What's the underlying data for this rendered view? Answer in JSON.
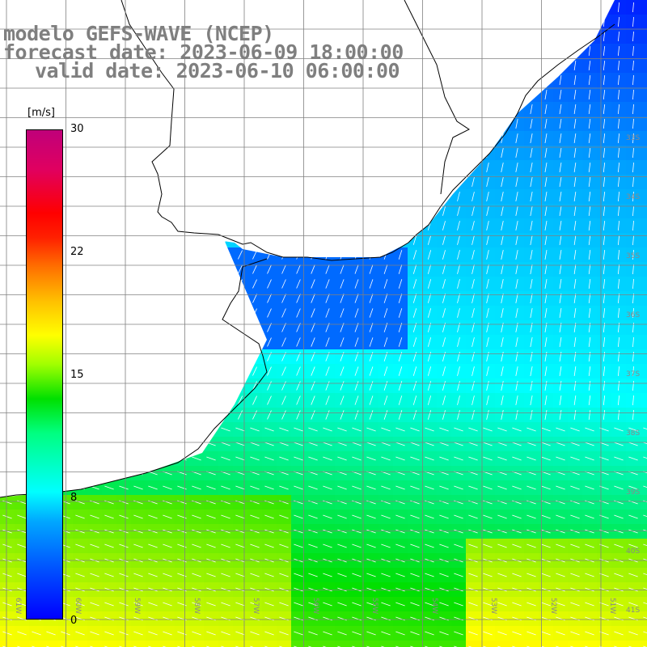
{
  "title": {
    "line1": "modelo GEFS-WAVE (NCEP)",
    "line2": "forecast date: 2023-06-09 18:00:00",
    "line3": "valid date: 2023-06-10 06:00:00"
  },
  "legend": {
    "unit": "[m/s]",
    "ticks": [
      "30",
      "22",
      "15",
      "8",
      "0"
    ],
    "tick_values": [
      30,
      22,
      15,
      8,
      0
    ],
    "colors": [
      "#0000ff",
      "#00a8ff",
      "#00ffff",
      "#00e000",
      "#ffff00",
      "#ff7000",
      "#ff0000",
      "#c0007a"
    ]
  },
  "map": {
    "lat_labels": [
      "33S",
      "34S",
      "35S",
      "36S",
      "37S",
      "38S",
      "39S",
      "40S",
      "41S"
    ],
    "lon_labels": [
      "61W",
      "60W",
      "59W",
      "58W",
      "57W",
      "56W",
      "55W",
      "54W",
      "53W",
      "52W",
      "51W"
    ],
    "land_color": "#ffffff",
    "coast_color": "#000000",
    "grid_color": "#808080"
  }
}
